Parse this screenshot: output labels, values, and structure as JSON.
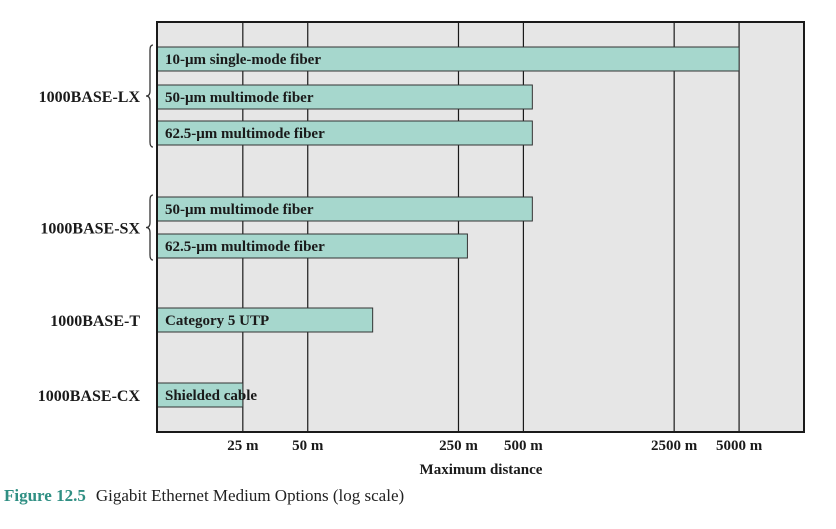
{
  "chart_data": {
    "type": "bar",
    "orientation": "horizontal",
    "x_scale": "log",
    "xlabel": "Maximum distance",
    "x_ticks": [
      {
        "value": 25,
        "label": "25 m"
      },
      {
        "value": 50,
        "label": "50 m"
      },
      {
        "value": 250,
        "label": "250 m"
      },
      {
        "value": 500,
        "label": "500 m"
      },
      {
        "value": 2500,
        "label": "2500 m"
      },
      {
        "value": 5000,
        "label": "5000 m"
      }
    ],
    "xlim": [
      10,
      10000
    ],
    "grid": "vertical",
    "colors": {
      "bar_fill": "#a6d7cd",
      "bar_stroke": "#333333",
      "plot_bg": "#e6e6e6",
      "grid": "#1a1a1a",
      "caption_accent": "#2f8f83"
    },
    "groups": [
      {
        "name": "1000BASE-LX",
        "bars": [
          {
            "label": "10-μm single-mode fiber",
            "value": 5000
          },
          {
            "label": "50-μm multimode fiber",
            "value": 550
          },
          {
            "label": "62.5-μm multimode fiber",
            "value": 550
          }
        ]
      },
      {
        "name": "1000BASE-SX",
        "bars": [
          {
            "label": "50-μm multimode fiber",
            "value": 550
          },
          {
            "label": "62.5-μm multimode fiber",
            "value": 275
          }
        ]
      },
      {
        "name": "1000BASE-T",
        "bars": [
          {
            "label": "Category 5 UTP",
            "value": 100
          }
        ]
      },
      {
        "name": "1000BASE-CX",
        "bars": [
          {
            "label": "Shielded cable",
            "value": 25
          }
        ]
      }
    ]
  },
  "caption": {
    "figure_number": "Figure 12.5",
    "text": "Gigabit Ethernet Medium Options (log scale)"
  }
}
